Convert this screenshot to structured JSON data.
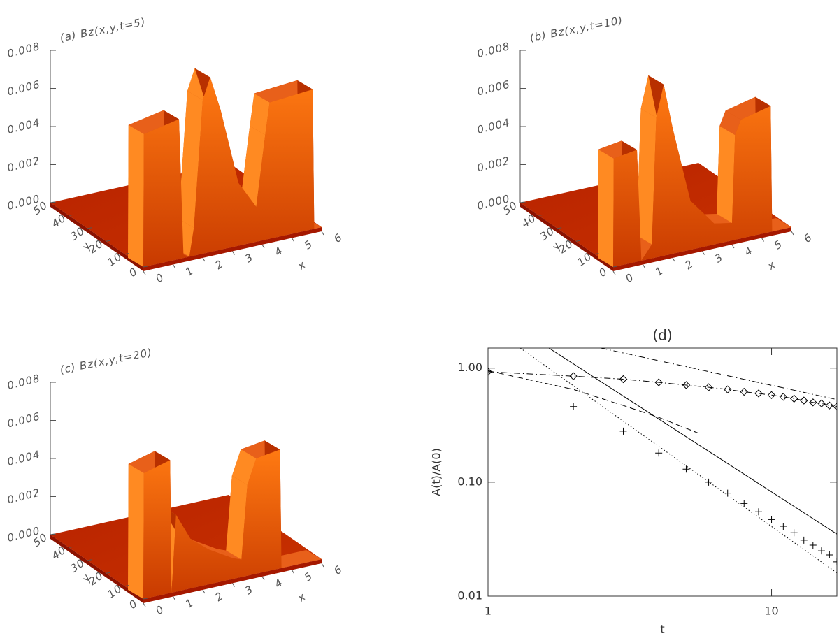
{
  "chart_data": [
    {
      "type": "surface",
      "title": "(a) Bz(x,y,t=5)",
      "xlabel": "x",
      "ylabel": "y",
      "xlim": [
        0,
        6
      ],
      "ylim": [
        0,
        50
      ],
      "zlim": [
        0,
        0.008
      ],
      "xticks": [
        0,
        1,
        2,
        3,
        4,
        5,
        6
      ],
      "yticks": [
        0,
        10,
        20,
        30,
        40,
        50
      ],
      "zticks": [
        {
          "value": 0,
          "label": "0.000"
        },
        0.002,
        0.004,
        0.006,
        0.008
      ]
    },
    {
      "type": "surface",
      "title": "(b) Bz(x,y,t=10)",
      "xlabel": "x",
      "ylabel": "y",
      "xlim": [
        0,
        6
      ],
      "ylim": [
        0,
        50
      ],
      "zlim": [
        0,
        0.008
      ],
      "xticks": [
        0,
        1,
        2,
        3,
        4,
        5,
        6
      ],
      "yticks": [
        0,
        10,
        20,
        30,
        40,
        50
      ],
      "zticks": [
        {
          "value": 0,
          "label": "0.000"
        },
        0.002,
        0.004,
        0.006,
        0.008
      ]
    },
    {
      "type": "surface",
      "title": "(c) Bz(x,y,t=20)",
      "xlabel": "x",
      "ylabel": "y",
      "xlim": [
        0,
        6
      ],
      "ylim": [
        0,
        50
      ],
      "zlim": [
        0,
        0.008
      ],
      "xticks": [
        0,
        1,
        2,
        3,
        4,
        5,
        6
      ],
      "yticks": [
        0,
        10,
        20,
        30,
        40,
        50
      ],
      "zticks": [
        {
          "value": 0,
          "label": "0.000"
        },
        0.002,
        0.004,
        0.006,
        0.008
      ]
    },
    {
      "type": "line",
      "title": "(d)",
      "xlabel": "t",
      "ylabel": "A(t)/A(0)",
      "xlog": true,
      "ylog": true,
      "xlim": [
        1,
        17
      ],
      "ylim": [
        0.01,
        1.5
      ],
      "xticks": [
        1,
        10
      ],
      "yticks": [
        0.01,
        {
          "value": 0.1,
          "label": "0.10"
        },
        {
          "value": 1,
          "label": "1.00"
        }
      ],
      "series": [
        {
          "color": "#000000",
          "linestyle": "dashdot",
          "marker": "diamond",
          "x": [
            1,
            2,
            3,
            4,
            5,
            6,
            7,
            8,
            9,
            10,
            11,
            12,
            13,
            14,
            15,
            16,
            17
          ],
          "values": [
            0.93,
            0.85,
            0.8,
            0.75,
            0.71,
            0.68,
            0.65,
            0.62,
            0.6,
            0.58,
            0.56,
            0.54,
            0.52,
            0.5,
            0.49,
            0.47,
            0.46
          ]
        },
        {
          "color": "#000000",
          "linestyle": "none",
          "marker": "plus",
          "x": [
            2,
            3,
            4,
            5,
            6,
            7,
            8,
            9,
            10,
            11,
            12,
            13,
            14,
            15,
            16,
            17
          ],
          "values": [
            0.46,
            0.28,
            0.18,
            0.13,
            0.1,
            0.08,
            0.065,
            0.055,
            0.047,
            0.041,
            0.036,
            0.031,
            0.028,
            0.025,
            0.023,
            0.02
          ]
        },
        {
          "color": "#000000",
          "linestyle": "solid",
          "marker": "none",
          "x": [
            1.64,
            17
          ],
          "values": [
            1.5,
            0.035
          ]
        },
        {
          "color": "#000000",
          "linestyle": "dashed",
          "marker": "none",
          "x": [
            1,
            2,
            3,
            4,
            5.5
          ],
          "values": [
            0.95,
            0.65,
            0.47,
            0.37,
            0.27
          ]
        },
        {
          "color": "#000000",
          "linestyle": "dotted",
          "marker": "none",
          "x": [
            1.3,
            17
          ],
          "values": [
            1.5,
            0.016
          ]
        },
        {
          "color": "#000000",
          "linestyle": "dashdot",
          "marker": "none",
          "x": [
            2.5,
            17
          ],
          "values": [
            1.5,
            0.53
          ]
        }
      ]
    }
  ]
}
